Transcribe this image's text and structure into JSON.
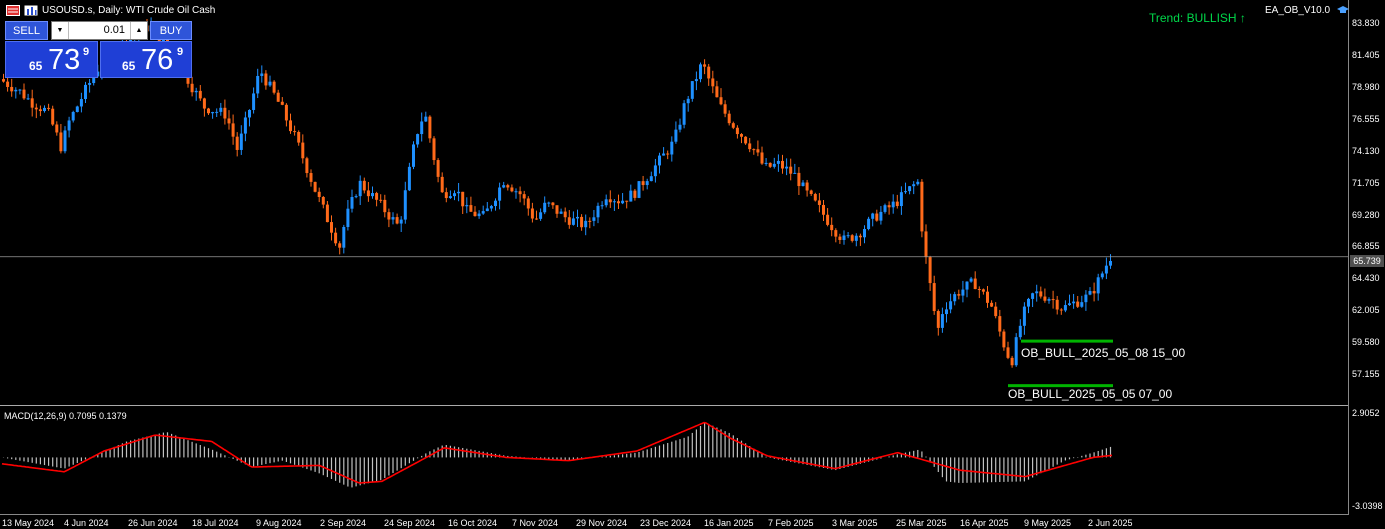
{
  "header": {
    "symbol_label": "USOUSD.s, Daily:  WTI Crude Oil Cash"
  },
  "ea": {
    "name": "EA_OB_V10.0",
    "trend": "Trend: BULLISH ↑"
  },
  "trade_panel": {
    "sell_label": "SELL",
    "buy_label": "BUY",
    "lot_value": "0.01",
    "sell_price": {
      "small": "65",
      "big": "73",
      "sup": "9"
    },
    "buy_price": {
      "small": "65",
      "big": "76",
      "sup": "9"
    }
  },
  "price_axis": {
    "labels": [
      "83.830",
      "81.405",
      "78.980",
      "76.555",
      "74.130",
      "71.705",
      "69.280",
      "66.855",
      "64.430",
      "62.005",
      "59.580",
      "57.155"
    ],
    "current_price": "65.739"
  },
  "macd_axis": {
    "top": "2.9052",
    "bottom": "-3.0398"
  },
  "macd": {
    "label": "MACD(12,26,9) 0.7095 0.1379"
  },
  "date_axis": {
    "labels": [
      "13 May 2024",
      "4 Jun 2024",
      "26 Jun 2024",
      "18 Jul 2024",
      "9 Aug 2024",
      "2 Sep 2024",
      "24 Sep 2024",
      "16 Oct 2024",
      "7 Nov 2024",
      "29 Nov 2024",
      "23 Dec 2024",
      "16 Jan 2025",
      "7 Feb 2025",
      "3 Mar 2025",
      "25 Mar 2025",
      "16 Apr 2025",
      "9 May 2025",
      "2 Jun 2025"
    ]
  },
  "order_blocks": [
    {
      "label": "OB_BULL_2025_05_08 15_00",
      "price": 59.3
    },
    {
      "label": "OB_BULL_2025_05_05 07_00",
      "price": 55.9
    }
  ],
  "colors": {
    "bull": "#1e90ff",
    "bear": "#ff6a1a",
    "macd_hist": "#c0c0c0",
    "signal": "#ff0000",
    "ob": "#00b400",
    "trend": "#00d84a",
    "panel": "#1f3fd6"
  },
  "chart_data": {
    "type": "candlestick",
    "title": "USOUSD.s, Daily:  WTI Crude Oil Cash",
    "ylim": [
      54.5,
      84.8
    ],
    "x_start": "13 May 2024",
    "x_end": "9 Jun 2025",
    "price_path": [
      [
        "13 May 2024",
        79.3
      ],
      [
        "20 May 2024",
        78.4
      ],
      [
        "24 May 2024",
        77.6
      ],
      [
        "30 May 2024",
        76.8
      ],
      [
        "4 Jun 2024",
        74.0
      ],
      [
        "6 Jun 2024",
        75.8
      ],
      [
        "12 Jun 2024",
        78.3
      ],
      [
        "18 Jun 2024",
        80.6
      ],
      [
        "26 Jun 2024",
        82.0
      ],
      [
        "5 Jul 2024",
        83.4
      ],
      [
        "10 Jul 2024",
        82.0
      ],
      [
        "18 Jul 2024",
        79.5
      ],
      [
        "24 Jul 2024",
        77.2
      ],
      [
        "1 Aug 2024",
        76.6
      ],
      [
        "5 Aug 2024",
        73.9
      ],
      [
        "9 Aug 2024",
        76.8
      ],
      [
        "13 Aug 2024",
        80.0
      ],
      [
        "20 Aug 2024",
        77.3
      ],
      [
        "26 Aug 2024",
        74.5
      ],
      [
        "2 Sep 2024",
        70.5
      ],
      [
        "10 Sep 2024",
        66.5
      ],
      [
        "12 Sep 2024",
        68.5
      ],
      [
        "17 Sep 2024",
        71.4
      ],
      [
        "24 Sep 2024",
        69.8
      ],
      [
        "1 Oct 2024",
        68.0
      ],
      [
        "7 Oct 2024",
        75.0
      ],
      [
        "10 Oct 2024",
        76.8
      ],
      [
        "16 Oct 2024",
        70.5
      ],
      [
        "21 Oct 2024",
        71.0
      ],
      [
        "25 Oct 2024",
        69.2
      ],
      [
        "31 Oct 2024",
        68.8
      ],
      [
        "7 Nov 2024",
        71.6
      ],
      [
        "13 Nov 2024",
        70.5
      ],
      [
        "18 Nov 2024",
        68.5
      ],
      [
        "22 Nov 2024",
        69.8
      ],
      [
        "29 Nov 2024",
        68.7
      ],
      [
        "6 Dec 2024",
        68.1
      ],
      [
        "13 Dec 2024",
        70.5
      ],
      [
        "18 Dec 2024",
        70.0
      ],
      [
        "23 Dec 2024",
        70.6
      ],
      [
        "31 Dec 2024",
        72.8
      ],
      [
        "6 Jan 2025",
        74.5
      ],
      [
        "10 Jan 2025",
        77.5
      ],
      [
        "16 Jan 2025",
        80.5
      ],
      [
        "22 Jan 2025",
        77.3
      ],
      [
        "28 Jan 2025",
        75.5
      ],
      [
        "3 Feb 2025",
        74.0
      ],
      [
        "7 Feb 2025",
        72.5
      ],
      [
        "12 Feb 2025",
        72.8
      ],
      [
        "18 Feb 2025",
        71.9
      ],
      [
        "21 Feb 2025",
        70.8
      ],
      [
        "27 Feb 2025",
        69.2
      ],
      [
        "3 Mar 2025",
        68.0
      ],
      [
        "7 Mar 2025",
        67.0
      ],
      [
        "12 Mar 2025",
        67.5
      ],
      [
        "18 Mar 2025",
        68.8
      ],
      [
        "25 Mar 2025",
        69.8
      ],
      [
        "2 Apr 2025",
        71.5
      ],
      [
        "4 Apr 2025",
        66.8
      ],
      [
        "9 Apr 2025",
        60.0
      ],
      [
        "11 Apr 2025",
        61.8
      ],
      [
        "16 Apr 2025",
        63.0
      ],
      [
        "22 Apr 2025",
        63.8
      ],
      [
        "28 Apr 2025",
        62.0
      ],
      [
        "2 May 2025",
        59.3
      ],
      [
        "5 May 2025",
        57.6
      ],
      [
        "9 May 2025",
        61.2
      ],
      [
        "13 May 2025",
        63.0
      ],
      [
        "19 May 2025",
        62.6
      ],
      [
        "23 May 2025",
        61.8
      ],
      [
        "2 Jun 2025",
        62.8
      ],
      [
        "5 Jun 2025",
        64.0
      ],
      [
        "9 Jun 2025",
        65.74
      ]
    ],
    "horizontal_lines": [
      {
        "label": "current price",
        "value": 65.739
      }
    ],
    "macd": {
      "label": "MACD(12,26,9) 0.7095 0.1379",
      "ylim": [
        -3.0398,
        2.9052
      ],
      "last_main": 0.7095,
      "last_signal": 0.1379,
      "main_path": [
        [
          "13 May 2024",
          0.0
        ],
        [
          "4 Jun 2024",
          -0.7
        ],
        [
          "26 Jun 2024",
          1.0
        ],
        [
          "10 Jul 2024",
          1.6
        ],
        [
          "26 Jul 2024",
          0.5
        ],
        [
          "9 Aug 2024",
          -0.6
        ],
        [
          "20 Aug 2024",
          -0.2
        ],
        [
          "2 Sep 2024",
          -1.0
        ],
        [
          "13 Sep 2024",
          -1.9
        ],
        [
          "24 Sep 2024",
          -1.4
        ],
        [
          "10 Oct 2024",
          0.3
        ],
        [
          "16 Oct 2024",
          0.8
        ],
        [
          "7 Nov 2024",
          0.1
        ],
        [
          "29 Nov 2024",
          -0.2
        ],
        [
          "23 Dec 2024",
          0.3
        ],
        [
          "10 Jan 2025",
          1.3
        ],
        [
          "16 Jan 2025",
          2.2
        ],
        [
          "25 Jan 2025",
          1.5
        ],
        [
          "7 Feb 2025",
          0.0
        ],
        [
          "3 Mar 2025",
          -0.8
        ],
        [
          "25 Mar 2025",
          0.2
        ],
        [
          "2 Apr 2025",
          0.5
        ],
        [
          "11 Apr 2025",
          -1.5
        ],
        [
          "16 Apr 2025",
          -1.6
        ],
        [
          "9 May 2025",
          -1.5
        ],
        [
          "23 May 2025",
          -0.2
        ],
        [
          "2 Jun 2025",
          0.3
        ],
        [
          "9 Jun 2025",
          0.7095
        ]
      ],
      "signal_path": [
        [
          "13 May 2024",
          -0.4
        ],
        [
          "4 Jun 2024",
          -0.9
        ],
        [
          "18 Jun 2024",
          0.4
        ],
        [
          "6 Jul 2024",
          1.4
        ],
        [
          "26 Jul 2024",
          1.0
        ],
        [
          "9 Aug 2024",
          -0.6
        ],
        [
          "2 Sep 2024",
          -0.5
        ],
        [
          "16 Sep 2024",
          -1.6
        ],
        [
          "24 Sep 2024",
          -1.5
        ],
        [
          "16 Oct 2024",
          0.6
        ],
        [
          "7 Nov 2024",
          0.0
        ],
        [
          "29 Nov 2024",
          -0.2
        ],
        [
          "23 Dec 2024",
          0.4
        ],
        [
          "16 Jan 2025",
          2.2
        ],
        [
          "25 Jan 2025",
          1.2
        ],
        [
          "7 Feb 2025",
          0.1
        ],
        [
          "3 Mar 2025",
          -0.7
        ],
        [
          "25 Mar 2025",
          0.3
        ],
        [
          "16 Apr 2025",
          -0.8
        ],
        [
          "9 May 2025",
          -1.2
        ],
        [
          "2 Jun 2025",
          0.0
        ],
        [
          "9 Jun 2025",
          0.1379
        ]
      ]
    }
  }
}
